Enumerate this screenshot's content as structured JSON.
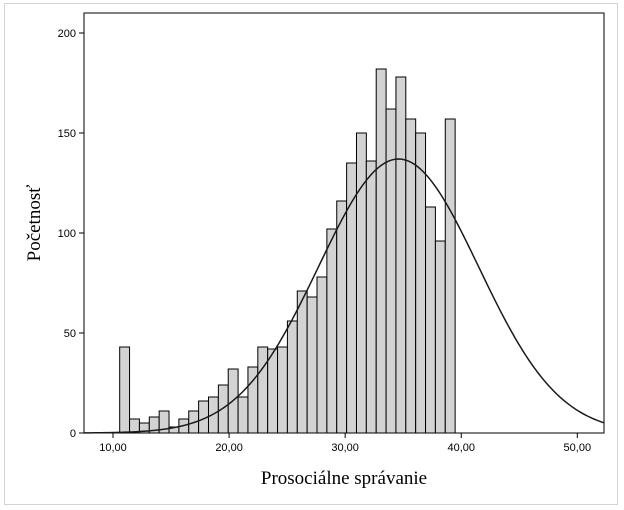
{
  "chart_data": {
    "type": "bar",
    "title": "",
    "xlabel": "Prosociálne správanie",
    "ylabel": "Početnosť",
    "xlim": [
      7.5,
      52.3
    ],
    "ylim": [
      0,
      210
    ],
    "x_ticks": [
      10,
      20,
      30,
      40,
      50
    ],
    "x_tick_labels": [
      "10,00",
      "20,00",
      "30,00",
      "40,00",
      "50,00"
    ],
    "y_ticks": [
      0,
      50,
      100,
      150,
      200
    ],
    "y_tick_labels": [
      "0",
      "50",
      "100",
      "150",
      "200"
    ],
    "grid": false,
    "bin_width": 0.85,
    "bars": [
      {
        "x": 11,
        "value": 43
      },
      {
        "x": 11.85,
        "value": 7
      },
      {
        "x": 12.7,
        "value": 5
      },
      {
        "x": 13.55,
        "value": 8
      },
      {
        "x": 14.4,
        "value": 11
      },
      {
        "x": 15.25,
        "value": 3
      },
      {
        "x": 16.1,
        "value": 7
      },
      {
        "x": 16.95,
        "value": 11
      },
      {
        "x": 17.8,
        "value": 16
      },
      {
        "x": 18.65,
        "value": 18
      },
      {
        "x": 19.5,
        "value": 24
      },
      {
        "x": 20.35,
        "value": 32
      },
      {
        "x": 21.2,
        "value": 18
      },
      {
        "x": 22.05,
        "value": 33
      },
      {
        "x": 22.9,
        "value": 43
      },
      {
        "x": 23.75,
        "value": 42
      },
      {
        "x": 24.6,
        "value": 43
      },
      {
        "x": 25.45,
        "value": 56
      },
      {
        "x": 26.3,
        "value": 71
      },
      {
        "x": 27.15,
        "value": 68
      },
      {
        "x": 28.0,
        "value": 78
      },
      {
        "x": 28.85,
        "value": 102
      },
      {
        "x": 29.7,
        "value": 116
      },
      {
        "x": 30.55,
        "value": 135
      },
      {
        "x": 31.4,
        "value": 150
      },
      {
        "x": 32.25,
        "value": 136
      },
      {
        "x": 33.1,
        "value": 182
      },
      {
        "x": 33.95,
        "value": 162
      },
      {
        "x": 34.8,
        "value": 178
      },
      {
        "x": 35.65,
        "value": 157
      },
      {
        "x": 36.5,
        "value": 150
      },
      {
        "x": 37.35,
        "value": 113
      },
      {
        "x": 38.2,
        "value": 96
      },
      {
        "x": 39.05,
        "value": 157
      }
    ],
    "normal_curve": {
      "mean": 34.6,
      "sd": 6.9,
      "peak": 137,
      "x_range": [
        7.5,
        52.3
      ]
    },
    "colors": {
      "bar_fill": "#d3d3d3",
      "bar_stroke": "#000000",
      "curve": "#1a1a1a"
    }
  }
}
